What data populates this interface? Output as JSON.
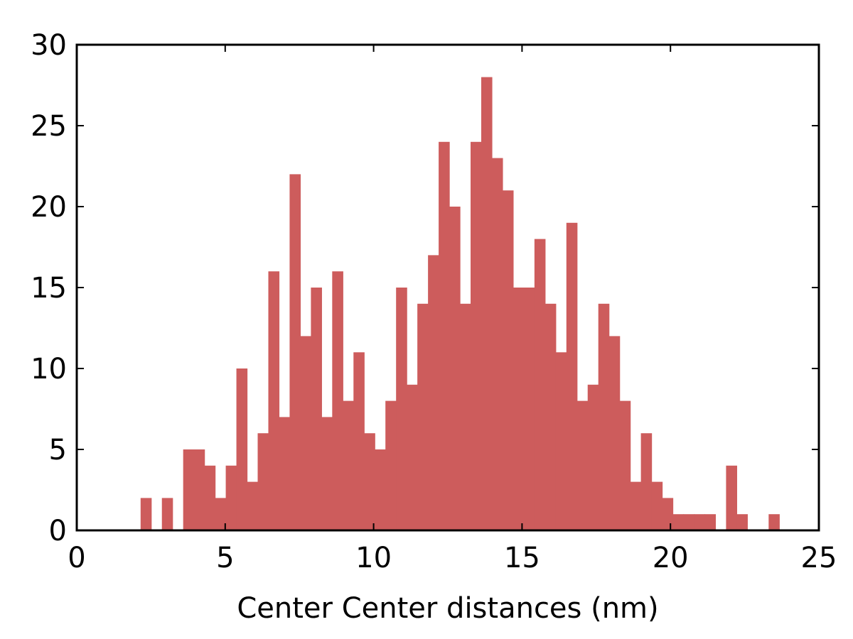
{
  "chart_data": {
    "type": "bar",
    "histogram": true,
    "title": "",
    "xlabel": "Center Center distances (nm)",
    "ylabel": "",
    "xlim": [
      0,
      25
    ],
    "ylim": [
      0,
      30
    ],
    "x_ticks": [
      "0",
      "5",
      "10",
      "15",
      "20",
      "25"
    ],
    "y_ticks": [
      "0",
      "5",
      "10",
      "15",
      "20",
      "25",
      "30"
    ],
    "grid": false,
    "legend": "none",
    "bar_color": "#cd5c5c",
    "bin_start": 2.15,
    "bin_width": 0.3586,
    "values": [
      2,
      0,
      2,
      0,
      5,
      5,
      4,
      2,
      4,
      10,
      3,
      6,
      16,
      7,
      22,
      12,
      15,
      7,
      16,
      8,
      11,
      6,
      5,
      8,
      15,
      9,
      14,
      17,
      24,
      20,
      14,
      24,
      28,
      23,
      21,
      15,
      15,
      18,
      14,
      11,
      19,
      8,
      9,
      14,
      12,
      8,
      3,
      6,
      3,
      2,
      1,
      1,
      1,
      1,
      0,
      4,
      1,
      0,
      0,
      1
    ]
  }
}
